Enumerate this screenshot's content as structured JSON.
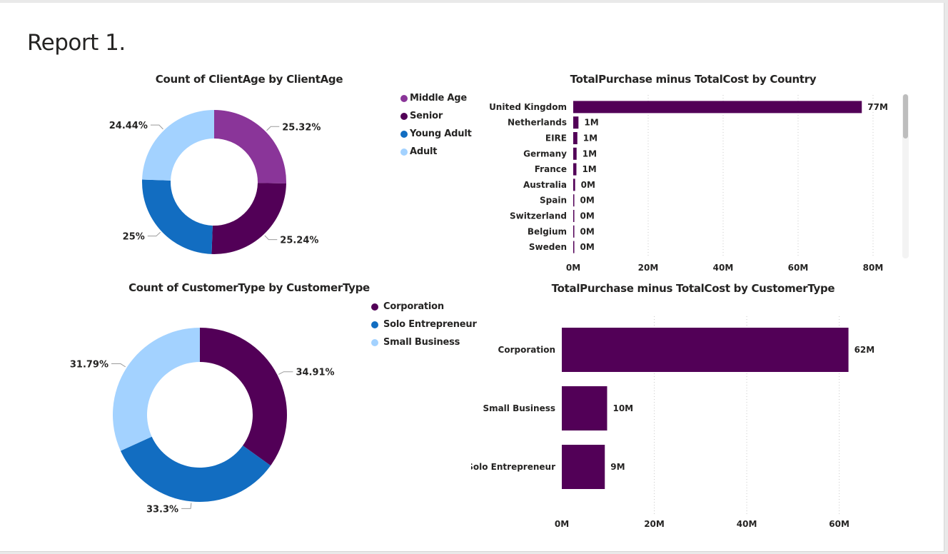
{
  "report": {
    "title": "Report 1."
  },
  "colors": {
    "middle_age": "#8a3599",
    "senior": "#520057",
    "young_adult": "#126dc1",
    "adult": "#a3d2ff",
    "corporation": "#520057",
    "solo_entrepreneur": "#126dc1",
    "small_business": "#a3d2ff",
    "bar": "#520057",
    "gridline": "#c8c8c8",
    "text": "#252423"
  },
  "legend_age": [
    {
      "label": "Middle Age",
      "color": "#8a3599"
    },
    {
      "label": "Senior",
      "color": "#520057"
    },
    {
      "label": "Young Adult",
      "color": "#126dc1"
    },
    {
      "label": "Adult",
      "color": "#a3d2ff"
    }
  ],
  "legend_customer": [
    {
      "label": "Corporation",
      "color": "#520057"
    },
    {
      "label": "Solo Entrepreneur",
      "color": "#126dc1"
    },
    {
      "label": "Small Business",
      "color": "#a3d2ff"
    }
  ],
  "chart_data": [
    {
      "type": "pie",
      "donut": true,
      "title": "Count of ClientAge by ClientAge",
      "categories": [
        "Middle Age",
        "Senior",
        "Young Adult",
        "Adult"
      ],
      "values": [
        25.32,
        25.24,
        25,
        24.44
      ],
      "data_labels": [
        "25.32%",
        "25.24%",
        "25%",
        "24.44%"
      ],
      "colors": [
        "#8a3599",
        "#520057",
        "#126dc1",
        "#a3d2ff"
      ],
      "legend": "right"
    },
    {
      "type": "bar",
      "orientation": "horizontal",
      "title": "TotalPurchase minus TotalCost by Country",
      "categories": [
        "United Kingdom",
        "Netherlands",
        "EIRE",
        "Germany",
        "France",
        "Australia",
        "Spain",
        "Switzerland",
        "Belgium",
        "Sweden"
      ],
      "values": [
        77,
        1.4,
        1.1,
        0.9,
        0.85,
        0.5,
        0.25,
        0.2,
        0.2,
        0.15
      ],
      "data_labels": [
        "77M",
        "1M",
        "1M",
        "1M",
        "1M",
        "0M",
        "0M",
        "0M",
        "0M",
        "0M"
      ],
      "unit": "M",
      "xlim": [
        0,
        80
      ],
      "xticks": [
        0,
        20,
        40,
        60,
        80
      ],
      "xtick_labels": [
        "0M",
        "20M",
        "40M",
        "60M",
        "80M"
      ],
      "grid": true
    },
    {
      "type": "pie",
      "donut": true,
      "title": "Count of CustomerType by CustomerType",
      "categories": [
        "Corporation",
        "Solo Entrepreneur",
        "Small Business"
      ],
      "values": [
        34.91,
        33.3,
        31.79
      ],
      "data_labels": [
        "34.91%",
        "33.3%",
        "31.79%"
      ],
      "colors": [
        "#520057",
        "#126dc1",
        "#a3d2ff"
      ],
      "legend": "right"
    },
    {
      "type": "bar",
      "orientation": "horizontal",
      "title": "TotalPurchase minus TotalCost by CustomerType",
      "categories": [
        "Corporation",
        "Small Business",
        "Solo Entrepreneur"
      ],
      "values": [
        62,
        9.8,
        9.3
      ],
      "data_labels": [
        "62M",
        "10M",
        "9M"
      ],
      "unit": "M",
      "xlim": [
        0,
        65
      ],
      "xticks": [
        0,
        20,
        40,
        60
      ],
      "xtick_labels": [
        "0M",
        "20M",
        "40M",
        "60M"
      ],
      "grid": true
    }
  ]
}
